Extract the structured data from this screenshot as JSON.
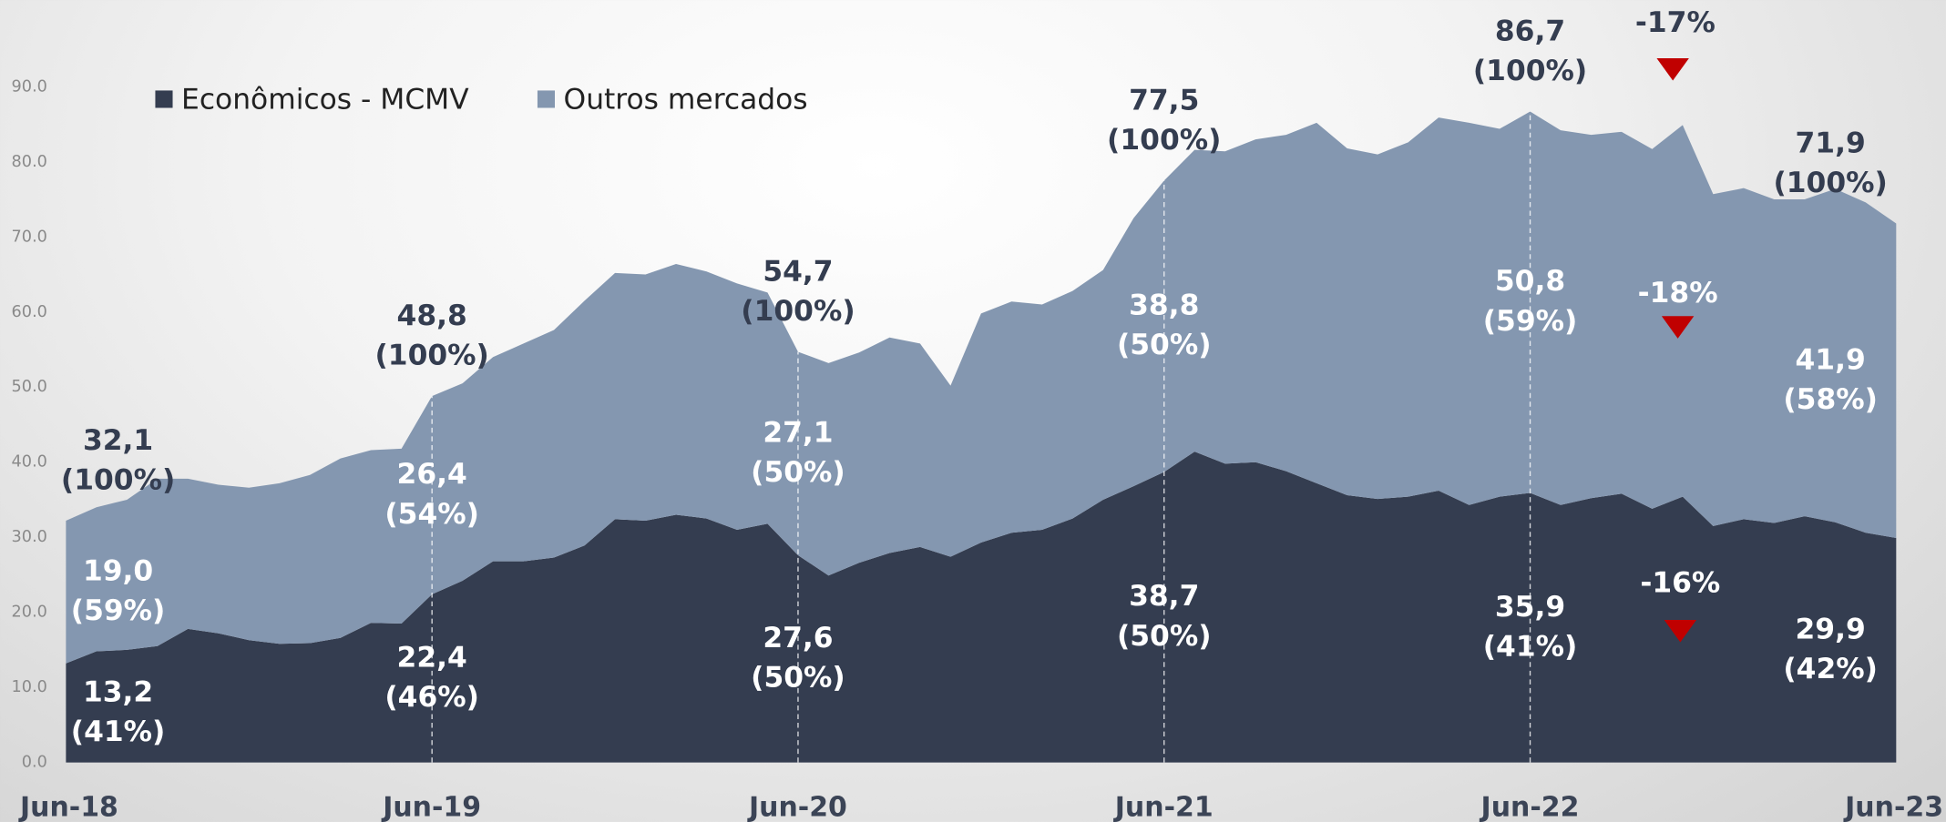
{
  "chart_data": {
    "type": "stacked_area",
    "categories": [
      "Jun-18",
      null,
      null,
      null,
      null,
      null,
      null,
      null,
      null,
      null,
      null,
      null,
      "Jun-19",
      null,
      null,
      null,
      null,
      null,
      null,
      null,
      null,
      null,
      null,
      null,
      "Jun-20",
      null,
      null,
      null,
      null,
      null,
      null,
      null,
      null,
      null,
      null,
      null,
      "Jun-21",
      null,
      null,
      null,
      null,
      null,
      null,
      null,
      null,
      null,
      null,
      null,
      "Jun-22",
      null,
      null,
      null,
      null,
      null,
      null,
      null,
      null,
      null,
      null,
      null,
      "Jun-23"
    ],
    "series": [
      {
        "name": "Econômicos - MCMV",
        "color": "#343d50",
        "values": [
          13.2,
          14.8,
          15.0,
          15.5,
          17.8,
          17.2,
          16.3,
          15.8,
          15.9,
          16.6,
          18.6,
          18.5,
          22.4,
          24.2,
          26.8,
          26.8,
          27.3,
          28.9,
          32.4,
          32.2,
          33.0,
          32.5,
          31.0,
          31.8,
          27.6,
          24.9,
          26.6,
          27.9,
          28.7,
          27.4,
          29.3,
          30.6,
          31.0,
          32.5,
          35.0,
          36.8,
          38.7,
          41.4,
          39.8,
          40.0,
          38.8,
          37.2,
          35.6,
          35.1,
          35.4,
          36.2,
          34.3,
          35.4,
          35.9,
          34.3,
          35.2,
          35.8,
          33.8,
          35.4,
          31.5,
          32.4,
          31.9,
          32.8,
          32.0,
          30.6,
          29.9
        ],
        "value_labels": [
          "13,2",
          null,
          null,
          null,
          null,
          null,
          null,
          null,
          null,
          null,
          null,
          null,
          "22,4",
          null,
          null,
          null,
          null,
          null,
          null,
          null,
          null,
          null,
          null,
          null,
          "27,6",
          null,
          null,
          null,
          null,
          null,
          null,
          null,
          null,
          null,
          null,
          null,
          "38,7",
          null,
          null,
          null,
          null,
          null,
          null,
          null,
          null,
          null,
          null,
          null,
          "35,9",
          null,
          null,
          null,
          null,
          null,
          null,
          null,
          null,
          null,
          null,
          null,
          "29,9"
        ],
        "share_labels": [
          "(41%)",
          null,
          null,
          null,
          null,
          null,
          null,
          null,
          null,
          null,
          null,
          null,
          "(46%)",
          null,
          null,
          null,
          null,
          null,
          null,
          null,
          null,
          null,
          null,
          null,
          "(50%)",
          null,
          null,
          null,
          null,
          null,
          null,
          null,
          null,
          null,
          null,
          null,
          "(50%)",
          null,
          null,
          null,
          null,
          null,
          null,
          null,
          null,
          null,
          null,
          null,
          "(41%)",
          null,
          null,
          null,
          null,
          null,
          null,
          null,
          null,
          null,
          null,
          null,
          "(42%)"
        ],
        "change_label": "-16%"
      },
      {
        "name": "Outros mercados",
        "color": "#8497b0",
        "values": [
          19.0,
          19.2,
          20.0,
          22.3,
          20.0,
          19.8,
          20.3,
          21.4,
          22.4,
          23.9,
          23.0,
          23.3,
          26.4,
          26.3,
          27.2,
          29.0,
          30.3,
          32.6,
          32.8,
          32.8,
          33.4,
          32.9,
          32.8,
          30.8,
          27.1,
          28.3,
          28.0,
          28.7,
          27.1,
          22.8,
          30.5,
          30.8,
          30.0,
          30.3,
          30.6,
          35.7,
          38.8,
          40.2,
          41.6,
          43.0,
          44.8,
          48.0,
          46.2,
          45.9,
          47.2,
          49.7,
          50.9,
          49.0,
          50.8,
          49.9,
          48.4,
          48.2,
          47.9,
          49.5,
          44.2,
          44.1,
          43.1,
          42.2,
          44.4,
          44.0,
          41.9
        ],
        "value_labels": [
          "19,0",
          null,
          null,
          null,
          null,
          null,
          null,
          null,
          null,
          null,
          null,
          null,
          "26,4",
          null,
          null,
          null,
          null,
          null,
          null,
          null,
          null,
          null,
          null,
          null,
          "27,1",
          null,
          null,
          null,
          null,
          null,
          null,
          null,
          null,
          null,
          null,
          null,
          "38,8",
          null,
          null,
          null,
          null,
          null,
          null,
          null,
          null,
          null,
          null,
          null,
          "50,8",
          null,
          null,
          null,
          null,
          null,
          null,
          null,
          null,
          null,
          null,
          null,
          "41,9"
        ],
        "share_labels": [
          "(59%)",
          null,
          null,
          null,
          null,
          null,
          null,
          null,
          null,
          null,
          null,
          null,
          "(54%)",
          null,
          null,
          null,
          null,
          null,
          null,
          null,
          null,
          null,
          null,
          null,
          "(50%)",
          null,
          null,
          null,
          null,
          null,
          null,
          null,
          null,
          null,
          null,
          null,
          "(50%)",
          null,
          null,
          null,
          null,
          null,
          null,
          null,
          null,
          null,
          null,
          null,
          "(59%)",
          null,
          null,
          null,
          null,
          null,
          null,
          null,
          null,
          null,
          null,
          null,
          "(58%)"
        ],
        "change_label": "-18%"
      }
    ],
    "total_labels": [
      "32,1",
      null,
      null,
      null,
      null,
      null,
      null,
      null,
      null,
      null,
      null,
      null,
      "48,8",
      null,
      null,
      null,
      null,
      null,
      null,
      null,
      null,
      null,
      null,
      null,
      "54,7",
      null,
      null,
      null,
      null,
      null,
      null,
      null,
      null,
      null,
      null,
      null,
      "77,5",
      null,
      null,
      null,
      null,
      null,
      null,
      null,
      null,
      null,
      null,
      null,
      "86,7",
      null,
      null,
      null,
      null,
      null,
      null,
      null,
      null,
      null,
      null,
      null,
      "71,9"
    ],
    "total_share_labels": [
      "(100%)",
      null,
      null,
      null,
      null,
      null,
      null,
      null,
      null,
      null,
      null,
      null,
      "(100%)",
      null,
      null,
      null,
      null,
      null,
      null,
      null,
      null,
      null,
      null,
      null,
      "(100%)",
      null,
      null,
      null,
      null,
      null,
      null,
      null,
      null,
      null,
      null,
      null,
      "(100%)",
      null,
      null,
      null,
      null,
      null,
      null,
      null,
      null,
      null,
      null,
      null,
      "(100%)",
      null,
      null,
      null,
      null,
      null,
      null,
      null,
      null,
      null,
      null,
      null,
      "(100%)"
    ],
    "total_change_label": "-17%",
    "change_marker_color": "#c00000",
    "ylim": [
      0,
      90
    ],
    "yticks": [
      {
        "value": 0,
        "label": "0.0"
      },
      {
        "value": 10,
        "label": "10.0"
      },
      {
        "value": 20,
        "label": "20.0"
      },
      {
        "value": 30,
        "label": "30.0"
      },
      {
        "value": 40,
        "label": "40.0"
      },
      {
        "value": 50,
        "label": "50.0"
      },
      {
        "value": 60,
        "label": "60.0"
      },
      {
        "value": 70,
        "label": "70.0"
      },
      {
        "value": 80,
        "label": "80.0"
      },
      {
        "value": 90,
        "label": "90.0"
      }
    ],
    "legend": "top-left"
  }
}
